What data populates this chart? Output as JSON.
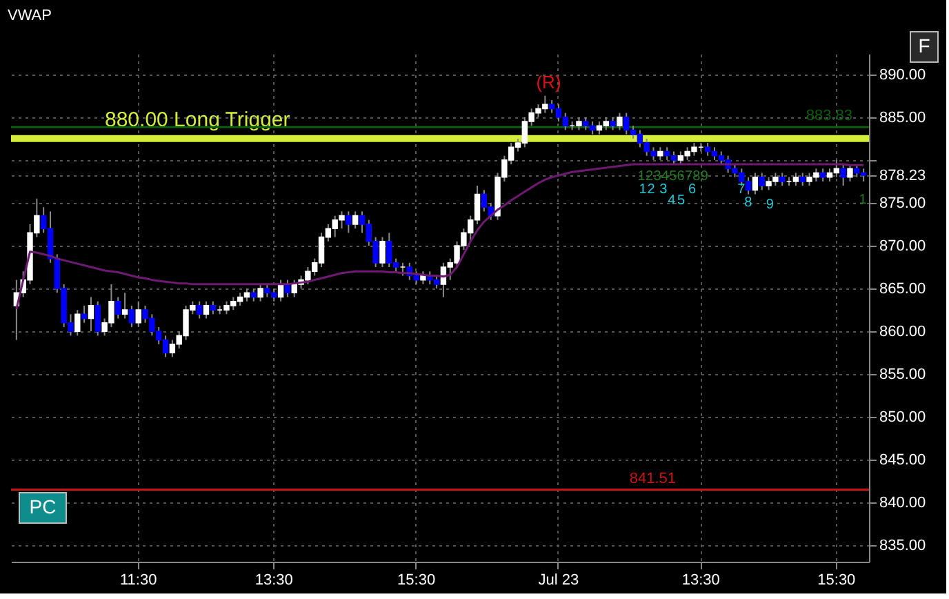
{
  "chart_data": {
    "type": "candlestick",
    "title": "VWAP",
    "categories": [
      null,
      null,
      null,
      null,
      null,
      null,
      null,
      null,
      null,
      null,
      null,
      null,
      null,
      null,
      null,
      null,
      null,
      null,
      "11:30",
      null,
      null,
      null,
      null,
      null,
      null,
      null,
      null,
      null,
      null,
      null,
      null,
      null,
      null,
      null,
      null,
      null,
      null,
      null,
      "13:30",
      null,
      null,
      null,
      null,
      null,
      null,
      null,
      null,
      null,
      null,
      null,
      null,
      null,
      null,
      null,
      null,
      null,
      null,
      null,
      null,
      "15:30",
      null,
      null,
      null,
      null,
      null,
      null,
      null,
      null,
      null,
      null,
      null,
      null,
      null,
      null,
      null,
      null,
      null,
      null,
      null,
      null,
      "Jul 23",
      null,
      null,
      null,
      null,
      null,
      null,
      null,
      null,
      null,
      null,
      null,
      null,
      null,
      null,
      null,
      null,
      null,
      null,
      null,
      null,
      "13:30",
      null,
      null,
      null,
      null,
      null,
      null,
      null,
      null,
      null,
      null,
      null,
      null,
      null,
      null,
      null,
      null,
      null,
      null,
      null,
      "15:30",
      null,
      null,
      null,
      null
    ],
    "ohlc": [
      [
        863,
        866,
        859,
        864.5
      ],
      [
        864.5,
        867,
        864,
        866
      ],
      [
        866,
        872.5,
        865.5,
        871.5
      ],
      [
        871.5,
        875.5,
        871,
        873.5
      ],
      [
        873.5,
        874.5,
        871.5,
        872
      ],
      [
        872,
        874,
        868,
        868.5
      ],
      [
        868.5,
        869,
        864.5,
        865
      ],
      [
        865,
        865.5,
        860.5,
        861
      ],
      [
        861,
        862,
        859.5,
        860
      ],
      [
        860,
        862.5,
        859.5,
        862
      ],
      [
        862,
        863,
        861,
        861.5
      ],
      [
        861.5,
        864,
        860,
        863
      ],
      [
        863,
        863.5,
        859.5,
        860
      ],
      [
        860,
        861.5,
        859.5,
        861
      ],
      [
        861,
        865.5,
        860.5,
        863.5
      ],
      [
        863.5,
        864,
        861.5,
        862
      ],
      [
        862,
        864.5,
        861.5,
        862.5
      ],
      [
        862.5,
        863,
        860.5,
        861
      ],
      [
        861,
        863.5,
        860.5,
        862.5
      ],
      [
        862.5,
        863,
        861,
        861.5
      ],
      [
        861.5,
        862,
        859.5,
        860
      ],
      [
        860,
        860.5,
        858.5,
        859
      ],
      [
        859,
        859.5,
        857,
        857.5
      ],
      [
        857.5,
        859,
        857,
        858.5
      ],
      [
        858.5,
        860,
        858,
        859.5
      ],
      [
        859.5,
        863,
        859,
        862.5
      ],
      [
        862.5,
        863.5,
        862,
        863
      ],
      [
        863,
        863.5,
        861.5,
        862
      ],
      [
        862,
        863.5,
        861.5,
        863
      ],
      [
        863,
        863.5,
        862,
        862.5
      ],
      [
        862.5,
        863,
        862,
        862.5
      ],
      [
        862.5,
        863.5,
        862,
        863
      ],
      [
        863,
        864,
        862.5,
        863.5
      ],
      [
        863.5,
        864.5,
        863,
        864
      ],
      [
        864,
        865,
        863.5,
        864.5
      ],
      [
        864.5,
        865,
        863.5,
        864
      ],
      [
        864,
        865.5,
        863.5,
        865
      ],
      [
        865,
        865.5,
        864,
        864.5
      ],
      [
        864.5,
        865,
        863.5,
        864
      ],
      [
        864,
        866,
        863.5,
        865.5
      ],
      [
        865.5,
        866,
        864,
        864.5
      ],
      [
        864.5,
        866,
        864,
        865.5
      ],
      [
        865.5,
        866.5,
        865,
        866
      ],
      [
        866,
        867.5,
        865.5,
        867
      ],
      [
        867,
        868.5,
        866.5,
        868
      ],
      [
        868,
        871.5,
        867.5,
        871
      ],
      [
        871,
        872.5,
        870.5,
        872
      ],
      [
        872,
        873.5,
        871,
        873
      ],
      [
        873,
        874,
        872,
        873.5
      ],
      [
        873.5,
        874,
        871.5,
        872.5
      ],
      [
        872.5,
        874,
        872,
        873.5
      ],
      [
        873.5,
        874,
        871.5,
        872.5
      ],
      [
        872.5,
        873,
        870,
        870.5
      ],
      [
        870.5,
        871,
        867.5,
        868
      ],
      [
        868,
        871,
        867.5,
        870.5
      ],
      [
        870.5,
        871.5,
        867.5,
        868
      ],
      [
        868,
        868.5,
        867,
        867.5
      ],
      [
        867.5,
        868,
        866.5,
        867.5
      ],
      [
        867.5,
        868,
        866,
        866.5
      ],
      [
        866.5,
        867,
        865.5,
        866
      ],
      [
        866,
        867,
        865.5,
        866.5
      ],
      [
        866.5,
        867,
        865.5,
        866
      ],
      [
        866,
        866.5,
        865,
        865.5
      ],
      [
        865.5,
        868,
        864,
        867.5
      ],
      [
        867.5,
        868.5,
        866,
        868
      ],
      [
        868,
        870.5,
        867.5,
        870
      ],
      [
        870,
        872,
        869.5,
        871.5
      ],
      [
        871.5,
        873.5,
        870.5,
        873
      ],
      [
        873,
        877,
        872.5,
        876
      ],
      [
        876,
        876.5,
        874,
        874.5
      ],
      [
        874.5,
        875,
        873,
        873.5
      ],
      [
        873.5,
        878.5,
        873,
        878
      ],
      [
        878,
        880.5,
        877.5,
        880
      ],
      [
        880,
        882,
        879.5,
        881.5
      ],
      [
        881.5,
        882.5,
        881,
        882
      ],
      [
        882,
        885,
        881.5,
        884.5
      ],
      [
        884.5,
        886,
        884,
        885.5
      ],
      [
        885.5,
        886.5,
        885,
        886
      ],
      [
        886,
        887.5,
        885.5,
        886.5
      ],
      [
        886.5,
        887,
        885.5,
        886
      ],
      [
        886,
        886.5,
        884.5,
        885
      ],
      [
        885,
        885.5,
        883.5,
        884
      ],
      [
        884,
        884.5,
        883.5,
        884
      ],
      [
        884,
        885,
        883.5,
        884.5
      ],
      [
        884.5,
        885,
        883.5,
        884
      ],
      [
        884,
        884.5,
        883,
        883.5
      ],
      [
        883.5,
        884.5,
        883,
        884
      ],
      [
        884,
        885,
        883.5,
        884.5
      ],
      [
        884.5,
        885,
        883.5,
        884
      ],
      [
        884,
        885.5,
        883.5,
        885
      ],
      [
        885,
        885.5,
        883,
        883.5
      ],
      [
        883.5,
        884,
        882.5,
        883
      ],
      [
        883,
        883.5,
        881.5,
        882
      ],
      [
        882,
        882.5,
        880.5,
        881
      ],
      [
        881,
        881.5,
        880,
        880.5
      ],
      [
        880.5,
        881.5,
        880,
        881
      ],
      [
        881,
        881.5,
        880,
        880.5
      ],
      [
        880.5,
        881,
        879.5,
        880
      ],
      [
        880,
        881,
        879.5,
        880.5
      ],
      [
        880.5,
        881.5,
        880,
        881
      ],
      [
        881,
        882,
        880.5,
        881.5
      ],
      [
        881.5,
        882,
        881,
        881.5
      ],
      [
        881.5,
        882,
        880.5,
        881
      ],
      [
        881,
        881.5,
        880,
        880.5
      ],
      [
        880.5,
        881,
        879.5,
        880
      ],
      [
        880,
        880.5,
        878.5,
        879
      ],
      [
        879,
        879.5,
        878,
        878.5
      ],
      [
        878.5,
        879,
        877,
        877.5
      ],
      [
        877.5,
        878,
        876,
        876.5
      ],
      [
        876.5,
        878.5,
        876,
        878
      ],
      [
        878,
        878.5,
        876.5,
        877
      ],
      [
        877,
        878,
        876.5,
        877.5
      ],
      [
        877.5,
        878.5,
        877,
        878
      ],
      [
        878,
        878.5,
        877,
        877.5
      ],
      [
        877.5,
        878,
        877,
        877.5
      ],
      [
        877.5,
        878.5,
        877,
        878
      ],
      [
        878,
        878.5,
        877,
        877.5
      ],
      [
        877.5,
        878.5,
        877,
        878
      ],
      [
        878,
        879,
        877.5,
        878.5
      ],
      [
        878.5,
        879,
        877.5,
        878
      ],
      [
        878,
        879,
        877.5,
        878.5
      ],
      [
        878.5,
        880,
        878,
        879
      ],
      [
        879,
        879.5,
        877,
        878
      ],
      [
        878,
        879.5,
        877.5,
        879
      ],
      [
        879,
        879.5,
        878,
        878.5
      ],
      [
        878.5,
        879,
        877.5,
        878.23
      ]
    ],
    "series": [
      {
        "type": "line",
        "color": "#6e1a72",
        "values": [
          862.6,
          866,
          869.3,
          869.2,
          869,
          868.8,
          868.5,
          868.3,
          868.1,
          867.9,
          867.7,
          867.5,
          867.3,
          867.1,
          867,
          866.9,
          866.7,
          866.5,
          866.3,
          866.2,
          866,
          865.9,
          865.8,
          865.7,
          865.6,
          865.6,
          865.5,
          865.5,
          865.5,
          865.5,
          865.5,
          865.5,
          865.5,
          865.5,
          865.5,
          865.5,
          865.5,
          865.5,
          865.5,
          865.5,
          865.5,
          865.6,
          865.7,
          865.8,
          866,
          866.2,
          866.4,
          866.6,
          866.8,
          866.9,
          867,
          867,
          867,
          867,
          867,
          866.9,
          866.9,
          866.8,
          866.8,
          866.7,
          866.6,
          866.5,
          866.5,
          866.4,
          866.6,
          867.5,
          869,
          870.5,
          871.8,
          872.8,
          873.5,
          874.2,
          874.7,
          875.3,
          875.8,
          876.3,
          876.8,
          877.3,
          877.7,
          878,
          878.2,
          878.4,
          878.6,
          878.7,
          878.8,
          878.9,
          879,
          879.1,
          879.2,
          879.3,
          879.4,
          879.5,
          879.5,
          879.5,
          879.5,
          879.5,
          879.5,
          879.5,
          879.5,
          879.5,
          879.5,
          879.5,
          879.5,
          879.5,
          879.5,
          879.5,
          879.5,
          879.5,
          879.5,
          879.5,
          879.5,
          879.5,
          879.5,
          879.5,
          879.5,
          879.5,
          879.5,
          879.5,
          879.5,
          879.5,
          879.5,
          879.5,
          879.5,
          879.4,
          879.4,
          879.4
        ]
      }
    ],
    "ylim": [
      833.1,
      892.4
    ],
    "yticks": [
      {
        "value": 835,
        "label": "835.00"
      },
      {
        "value": 840,
        "label": "840.00"
      },
      {
        "value": 845,
        "label": "845.00"
      },
      {
        "value": 850,
        "label": "850.00"
      },
      {
        "value": 855,
        "label": "855.00"
      },
      {
        "value": 860,
        "label": "860.00"
      },
      {
        "value": 865,
        "label": "865.00"
      },
      {
        "value": 870,
        "label": "870.00"
      },
      {
        "value": 875,
        "label": "875.00"
      },
      {
        "value": 878.23,
        "label": "878.23"
      },
      {
        "value": 880,
        "label": null
      },
      {
        "value": 885,
        "label": "885.00"
      },
      {
        "value": 890,
        "label": "890.00"
      }
    ],
    "ref_lines": [
      {
        "axis": "y",
        "value": 882.5,
        "label": "880.00 Long Trigger",
        "color": "#d4ec3a"
      },
      {
        "axis": "y",
        "value": 883.83,
        "label": "883.83",
        "color": "#0b5e0b"
      },
      {
        "axis": "y",
        "value": 841.51,
        "label": "841.51",
        "color": "#c81414"
      }
    ],
    "annotations": [
      "(R)",
      "1",
      "2",
      "3",
      "4",
      "5",
      "6",
      "7",
      "8",
      "9",
      "1",
      "2",
      "3",
      "4",
      "5",
      "6",
      "7",
      "8",
      "9",
      "1",
      "PC",
      "F"
    ],
    "grid": true
  }
}
